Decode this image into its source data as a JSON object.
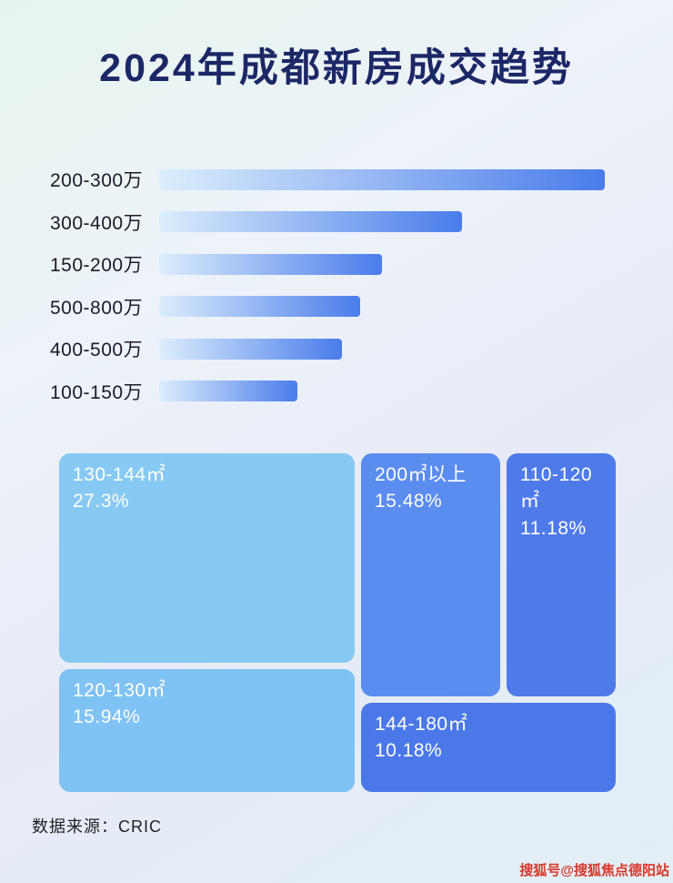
{
  "page": {
    "title": "2024年成都新房成交趋势"
  },
  "chart_data": [
    {
      "type": "bar",
      "orientation": "horizontal",
      "categories": [
        "200-300万",
        "300-400万",
        "150-200万",
        "500-800万",
        "400-500万",
        "100-150万"
      ],
      "values": [
        100,
        68,
        50,
        45,
        41,
        31
      ],
      "value_unit": "relative_bar_length_percent_of_longest_bar",
      "axis_labels_visible": false,
      "grid": false,
      "bar_gradient": [
        "#dceefc",
        "#4a7cea"
      ]
    },
    {
      "type": "treemap",
      "blocks": [
        {
          "range": "130-144㎡",
          "share": "27.3%",
          "value": 27.3,
          "color": "#86c9f3"
        },
        {
          "range": "200㎡以上",
          "share": "15.48%",
          "value": 15.48,
          "color": "#5b8cf0"
        },
        {
          "range": "110-120㎡",
          "share": "11.18%",
          "value": 11.18,
          "color": "#4e7be9"
        },
        {
          "range": "120-130㎡",
          "share": "15.94%",
          "value": 15.94,
          "color": "#7fc2f4"
        },
        {
          "range": "144-180㎡",
          "share": "10.18%",
          "value": 10.18,
          "color": "#4b78e9"
        }
      ]
    }
  ],
  "footer": {
    "source_label": "数据来源：CRIC"
  },
  "watermark": {
    "text": "搜狐号@搜狐焦点德阳站"
  }
}
